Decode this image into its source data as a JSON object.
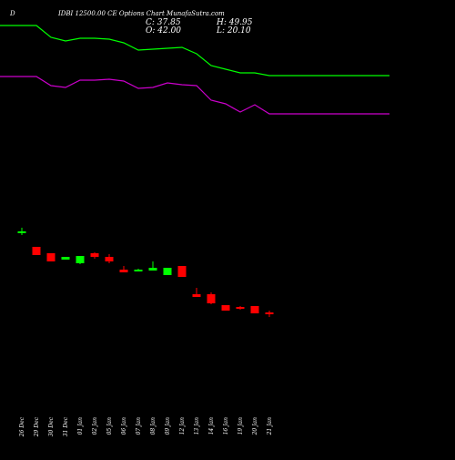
{
  "header": {
    "symbol_letter": "D",
    "title": "IDBI 12500.00 CE Options Chart MunafaSutra.com",
    "close": "C: 37.85",
    "open": "O: 42.00",
    "high": "H: 49.95",
    "low": "L: 20.10"
  },
  "chart_data": {
    "type": "candlestick",
    "title": "IDBI 12500.00 CE Options Chart MunafaSutra.com",
    "dates": [
      "26 Dec",
      "29 Dec",
      "30 Dec",
      "31 Dec",
      "01 Jan",
      "02 Jan",
      "05 Jan",
      "06 Jan",
      "07 Jan",
      "08 Jan",
      "09 Jan",
      "12 Jan",
      "13 Jan",
      "14 Jan",
      "16 Jan",
      "19 Jan",
      "20 Jan",
      "21 Jan"
    ],
    "price_scale": {
      "top": 260,
      "bottom": 40
    },
    "candles": [
      {
        "open": 246,
        "high": 250,
        "low": 242,
        "close": 246
      },
      {
        "open": 229,
        "high": 229,
        "low": 220,
        "close": 220
      },
      {
        "open": 222,
        "high": 222,
        "low": 213,
        "close": 213
      },
      {
        "open": 215,
        "high": 218,
        "low": 215,
        "close": 218
      },
      {
        "open": 211,
        "high": 219,
        "low": 210,
        "close": 219
      },
      {
        "open": 222,
        "high": 223,
        "low": 216,
        "close": 218
      },
      {
        "open": 218,
        "high": 221,
        "low": 211,
        "close": 213
      },
      {
        "open": 204,
        "high": 208,
        "low": 201,
        "close": 201
      },
      {
        "open": 202,
        "high": 205,
        "low": 202,
        "close": 204
      },
      {
        "open": 203,
        "high": 213,
        "low": 203,
        "close": 206
      },
      {
        "open": 198,
        "high": 206,
        "low": 198,
        "close": 206
      },
      {
        "open": 208,
        "high": 208,
        "low": 196,
        "close": 196
      },
      {
        "open": 177,
        "high": 184,
        "low": 174,
        "close": 174
      },
      {
        "open": 177,
        "high": 179,
        "low": 166,
        "close": 167
      },
      {
        "open": 165,
        "high": 165,
        "low": 159,
        "close": 159
      },
      {
        "open": 163,
        "high": 164,
        "low": 160,
        "close": 162
      },
      {
        "open": 164,
        "high": 164,
        "low": 156,
        "close": 156
      },
      {
        "open": 157,
        "high": 159,
        "low": 152,
        "close": 155
      }
    ],
    "series": [
      {
        "color": "#00ff00",
        "values": [
          472,
          472,
          459,
          455,
          458,
          458,
          457,
          453,
          445,
          446,
          447,
          448,
          441,
          428,
          424,
          420,
          420,
          417
        ]
      },
      {
        "color": "#cc00cc",
        "values": [
          416,
          416,
          406,
          404,
          412,
          412,
          413,
          411,
          403,
          404,
          409,
          407,
          406,
          390,
          386,
          377,
          385,
          375
        ]
      }
    ],
    "up_color": "#00ff00",
    "down_color": "#ff0000",
    "grid": false,
    "legend": "none"
  }
}
